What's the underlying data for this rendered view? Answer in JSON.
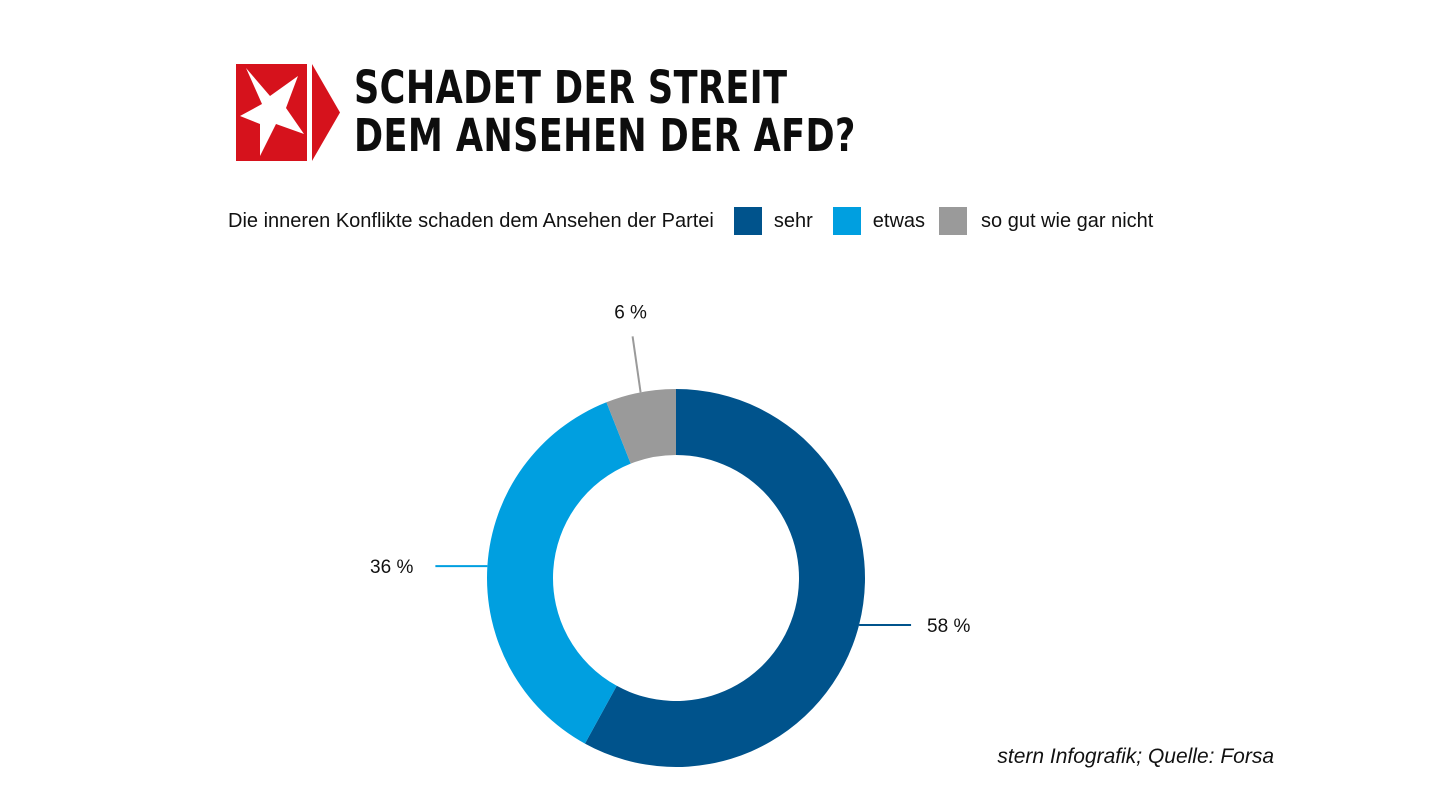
{
  "header": {
    "title_line_1": "SCHADET DER STREIT",
    "title_line_2": "DEM ANSEHEN DER AFD?",
    "logo_icon": "stern-logo-icon"
  },
  "legend": {
    "title": "Die inneren Konflikte schaden dem Ansehen der Partei",
    "items": [
      {
        "label": "sehr",
        "color": "#00538c"
      },
      {
        "label": "etwas",
        "color": "#009fe0"
      },
      {
        "label": "so gut wie gar nicht",
        "color": "#9a9a9a"
      }
    ]
  },
  "chart_data": {
    "type": "pie",
    "variant": "donut",
    "categories": [
      "sehr",
      "etwas",
      "so gut wie gar nicht"
    ],
    "values": [
      58,
      36,
      6
    ],
    "value_labels": [
      "58 %",
      "36 %",
      "6 %"
    ],
    "colors": [
      "#00538c",
      "#009fe0",
      "#9a9a9a"
    ],
    "legend_title": "Die inneren Konflikte schaden dem Ansehen der Partei",
    "legend_position": "top"
  },
  "footer": {
    "source": "stern Infografik; Quelle: Forsa"
  }
}
